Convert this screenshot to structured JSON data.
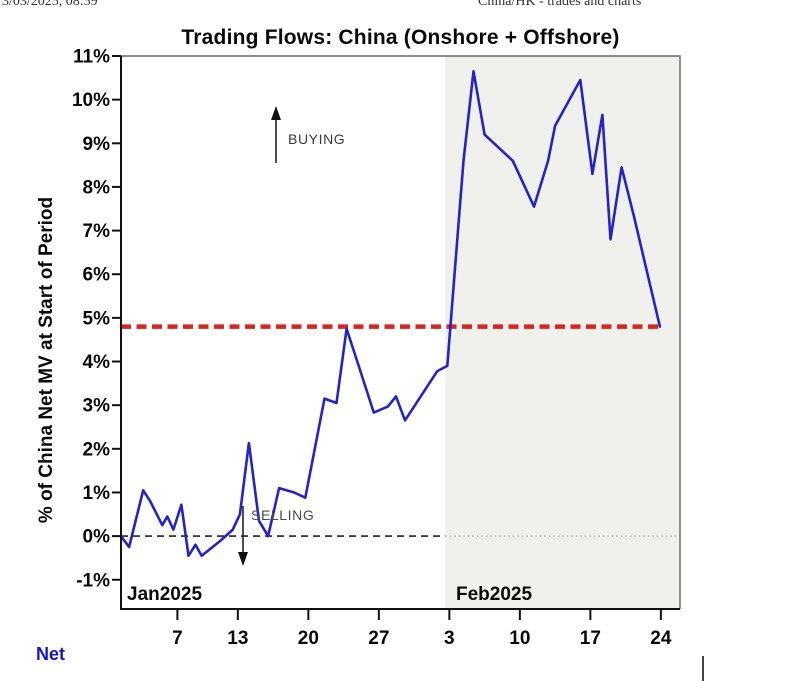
{
  "page_header": {
    "left": "3/03/2025, 08:59",
    "right": "China/HK - trades and charts"
  },
  "chart_data": {
    "type": "line",
    "title": "Trading Flows: China (Onshore + Offshore)",
    "ylabel": "% of China Net MV at Start of Period",
    "legend": {
      "label": "Net"
    },
    "annotations": {
      "buying": "BUYING",
      "selling": "SELLING"
    },
    "month_labels": [
      {
        "label": "Jan2025",
        "day": 2
      },
      {
        "label": "Feb2025",
        "day": 34.3
      }
    ],
    "x_unit": "day of period (Jan 1 2025 = day 1, Feb 1 2025 = day 32)",
    "x_domain_days": [
      1.4,
      56.9
    ],
    "ylim": [
      -1.67,
      11
    ],
    "grid": false,
    "y_ticks": [
      {
        "value": -1,
        "label": "-1%"
      },
      {
        "value": 0,
        "label": "0%"
      },
      {
        "value": 1,
        "label": "1%"
      },
      {
        "value": 2,
        "label": "2%"
      },
      {
        "value": 3,
        "label": "3%"
      },
      {
        "value": 4,
        "label": "4%"
      },
      {
        "value": 5,
        "label": "5%"
      },
      {
        "value": 6,
        "label": "6%"
      },
      {
        "value": 7,
        "label": "7%"
      },
      {
        "value": 8,
        "label": "8%"
      },
      {
        "value": 9,
        "label": "9%"
      },
      {
        "value": 10,
        "label": "10%"
      },
      {
        "value": 11,
        "label": "11%"
      }
    ],
    "x_ticks": [
      {
        "day": 7,
        "label": "7"
      },
      {
        "day": 13,
        "label": "13"
      },
      {
        "day": 20,
        "label": "20"
      },
      {
        "day": 27,
        "label": "27"
      },
      {
        "day": 34,
        "label": "3"
      },
      {
        "day": 41,
        "label": "10"
      },
      {
        "day": 48,
        "label": "17"
      },
      {
        "day": 55,
        "label": "24"
      }
    ],
    "reference_line": {
      "pct": 4.8,
      "color": "#d9261c",
      "style": "dashed",
      "span_days": [
        1.4,
        54.9
      ]
    },
    "zero_line_pct": 0,
    "shaded_region_days": [
      33.6,
      56.9
    ],
    "shaded_region_color": "#f0f1ec",
    "line_color": "#2323cc",
    "points": [
      [
        1.4,
        0.0
      ],
      [
        2.2,
        -0.25
      ],
      [
        3.6,
        1.05
      ],
      [
        4.3,
        0.8
      ],
      [
        5.5,
        0.25
      ],
      [
        6.0,
        0.45
      ],
      [
        6.6,
        0.15
      ],
      [
        7.4,
        0.72
      ],
      [
        8.1,
        -0.45
      ],
      [
        8.8,
        -0.2
      ],
      [
        9.4,
        -0.45
      ],
      [
        11.3,
        -0.1
      ],
      [
        12.5,
        0.15
      ],
      [
        13.2,
        0.5
      ],
      [
        14.1,
        2.13
      ],
      [
        15.1,
        0.35
      ],
      [
        16.0,
        0.0
      ],
      [
        17.1,
        1.1
      ],
      [
        18.6,
        1.0
      ],
      [
        19.7,
        0.88
      ],
      [
        21.6,
        3.15
      ],
      [
        22.8,
        3.05
      ],
      [
        23.8,
        4.75
      ],
      [
        25.0,
        3.9
      ],
      [
        26.5,
        2.83
      ],
      [
        27.9,
        2.97
      ],
      [
        28.7,
        3.2
      ],
      [
        29.6,
        2.65
      ],
      [
        32.8,
        3.78
      ],
      [
        33.8,
        3.9
      ],
      [
        35.4,
        8.6
      ],
      [
        36.4,
        10.65
      ],
      [
        37.5,
        9.2
      ],
      [
        40.3,
        8.6
      ],
      [
        42.4,
        7.55
      ],
      [
        43.8,
        8.6
      ],
      [
        44.5,
        9.4
      ],
      [
        47.0,
        10.45
      ],
      [
        48.2,
        8.3
      ],
      [
        49.2,
        9.65
      ],
      [
        50.0,
        6.8
      ],
      [
        51.1,
        8.45
      ],
      [
        52.3,
        7.35
      ],
      [
        54.9,
        4.8
      ]
    ]
  }
}
